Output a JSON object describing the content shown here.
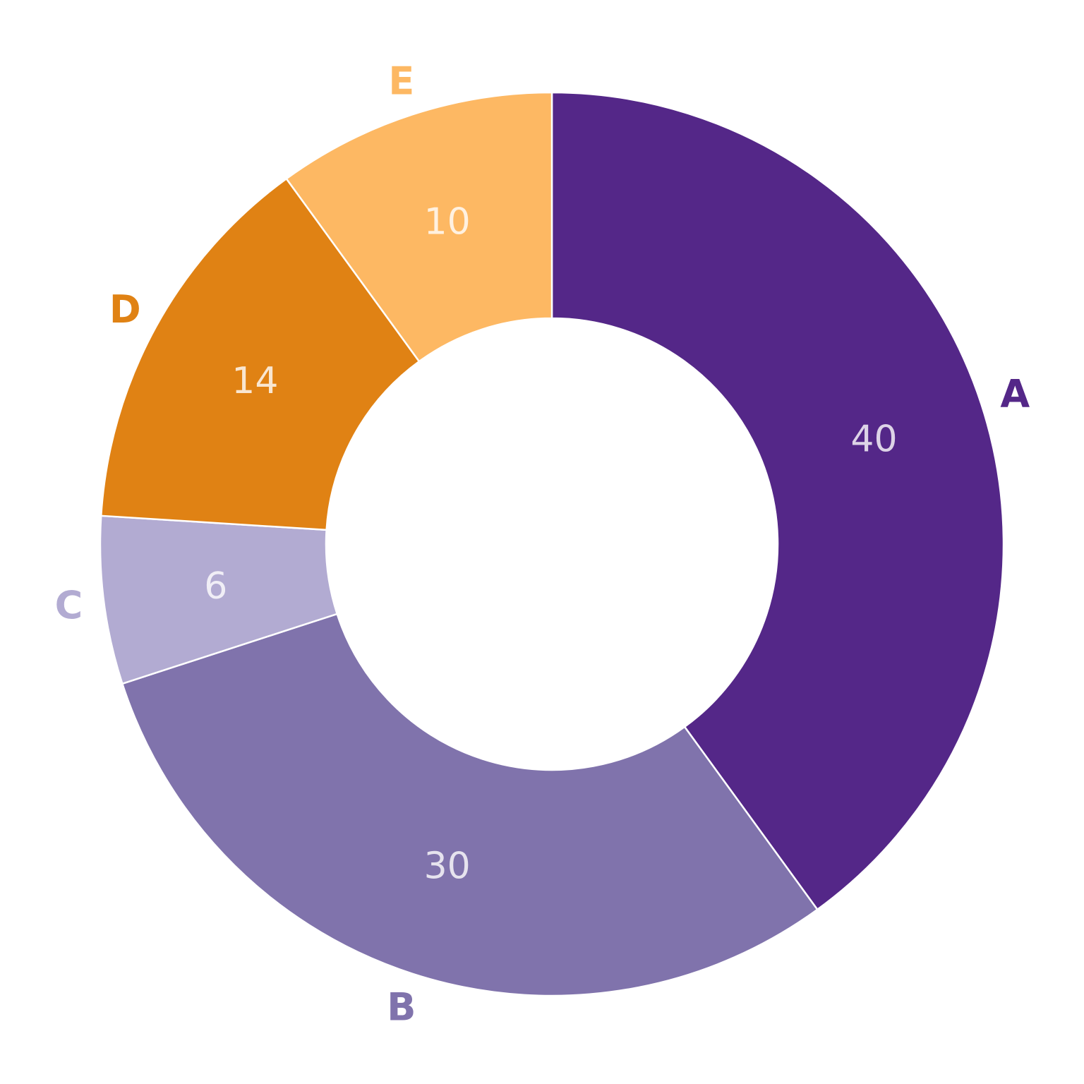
{
  "chart_data": {
    "type": "pie",
    "hole": 0.5,
    "direction": "clockwise",
    "start": "12 o'clock",
    "categories": [
      "A",
      "B",
      "C",
      "D",
      "E"
    ],
    "values": [
      40,
      30,
      6,
      14,
      10
    ],
    "value_labels": [
      "40",
      "30",
      "6",
      "14",
      "10"
    ],
    "colors": [
      "#542788",
      "#8073ac",
      "#b2abd2",
      "#e08214",
      "#fdb863"
    ],
    "legend": "none"
  }
}
